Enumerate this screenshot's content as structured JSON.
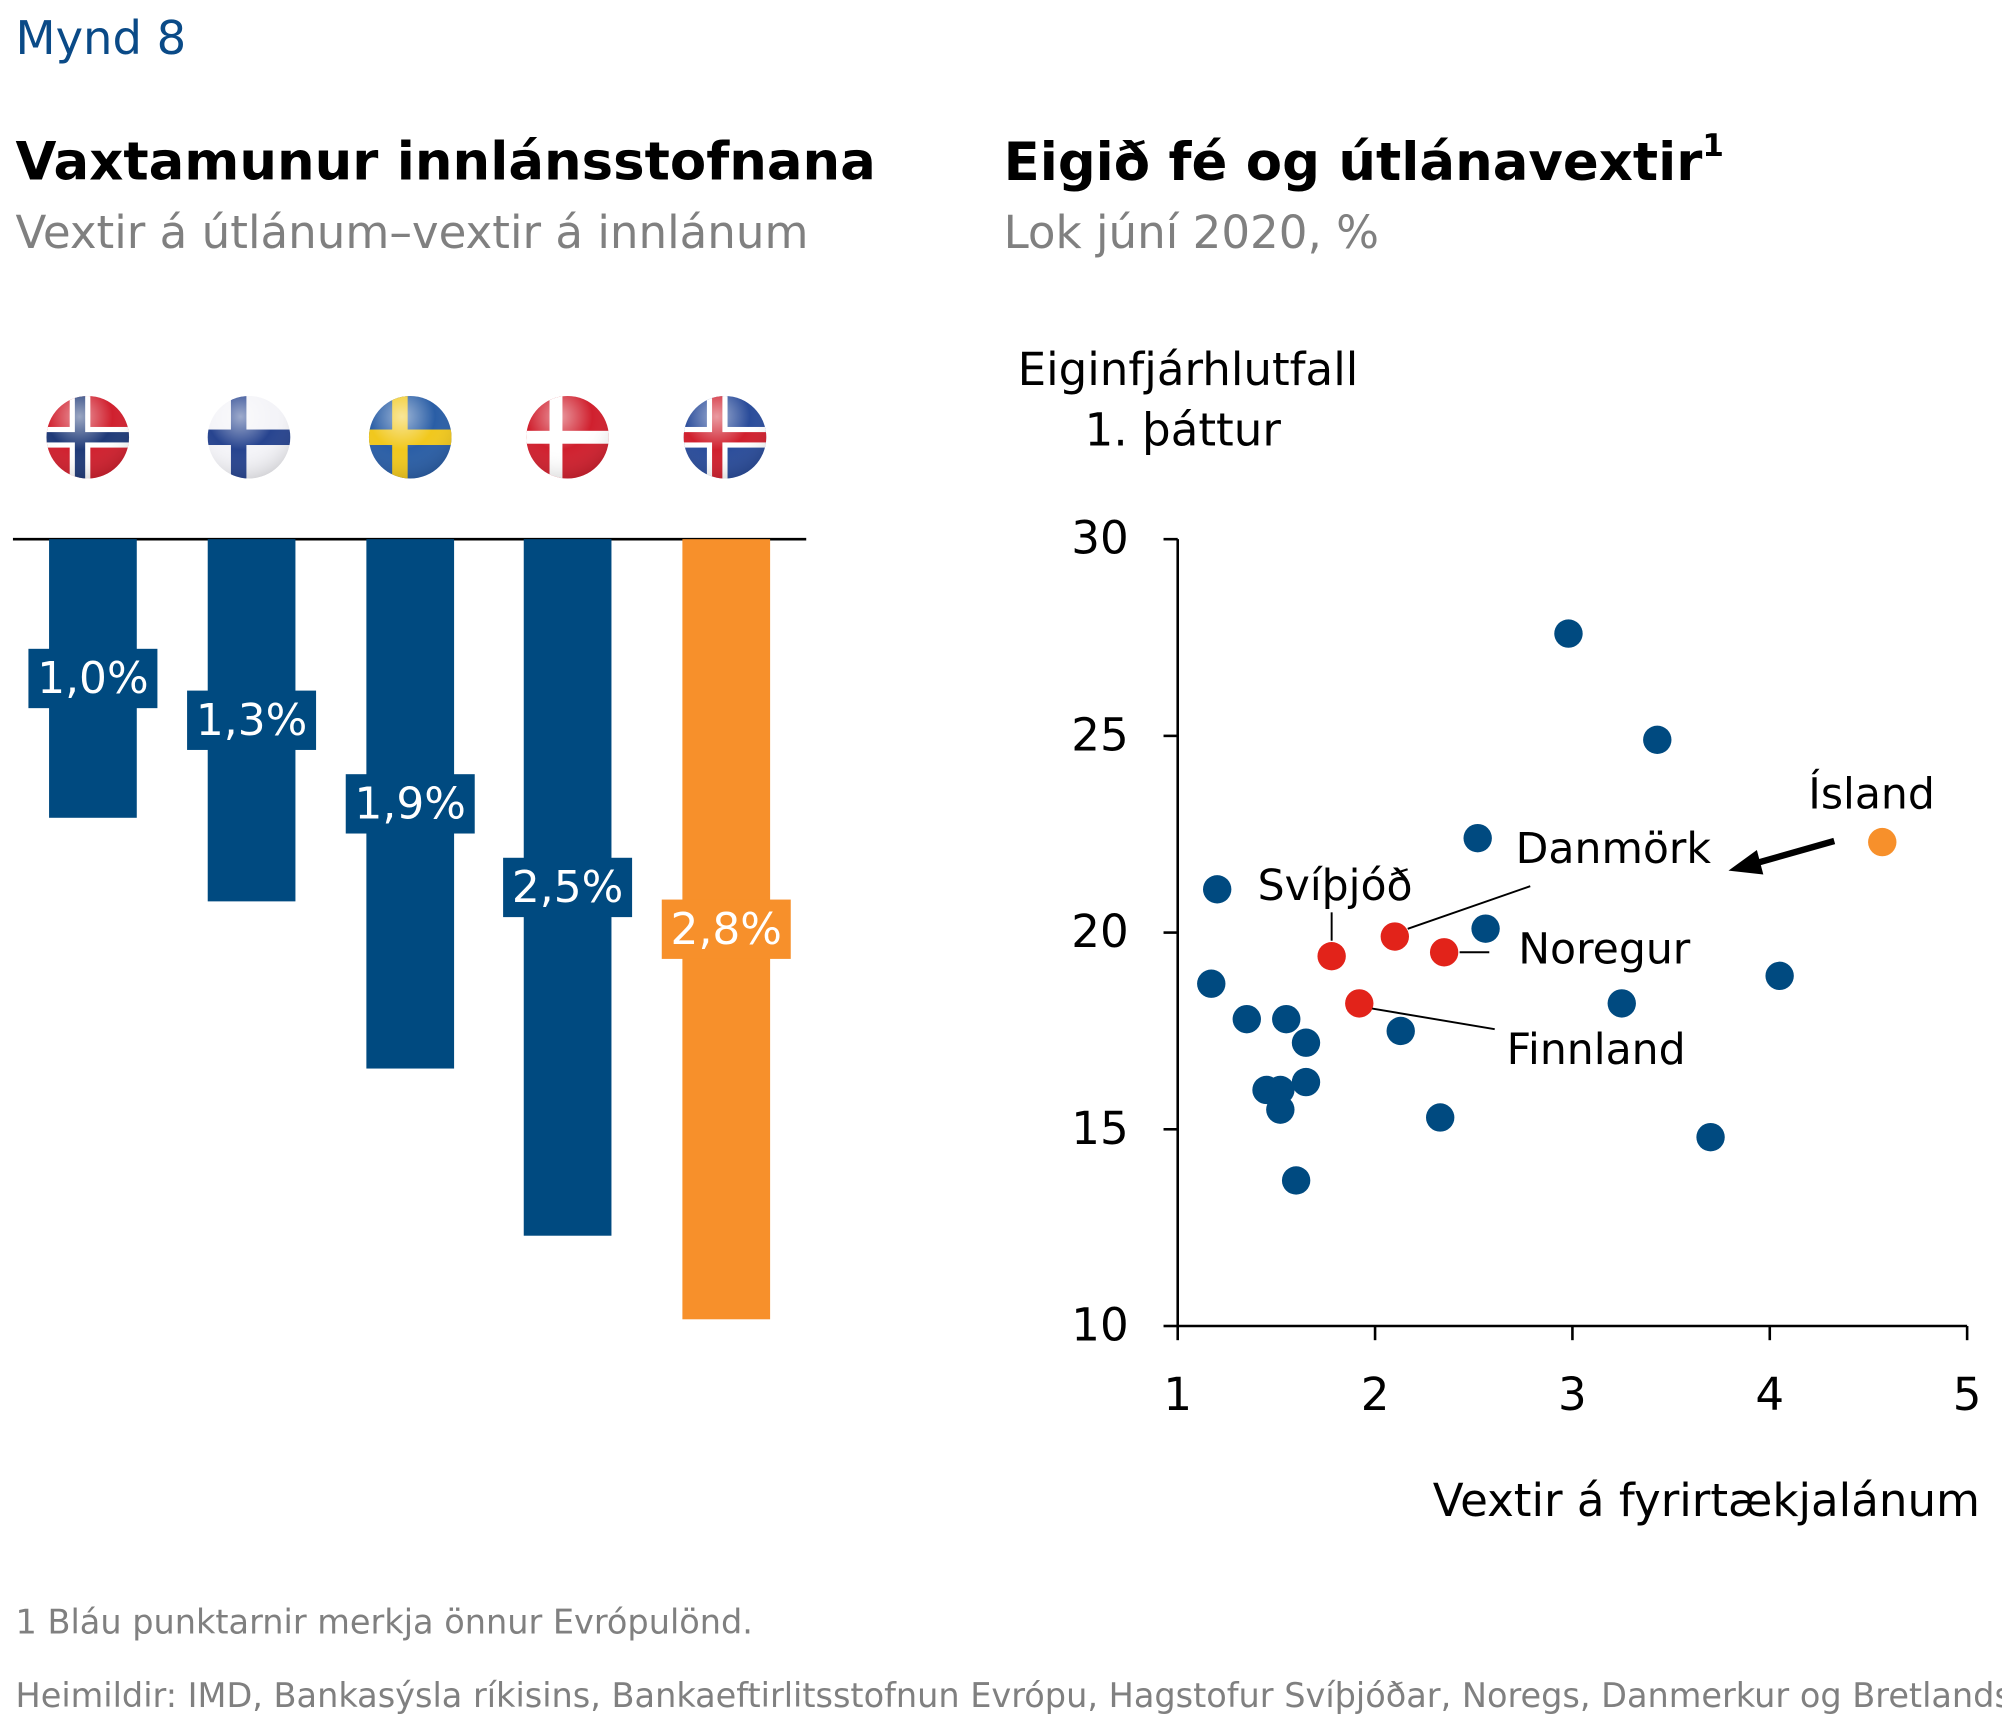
{
  "header": "Mynd 8",
  "chart_data": [
    {
      "type": "hanging-bar",
      "title": "Vaxtamunur innlánsstofnana",
      "subtitle": "Vextir á útlánum–vextir á innlánum",
      "values": [
        1.0,
        1.3,
        1.9,
        2.5,
        2.8
      ],
      "value_labels": [
        "1,0%",
        "1,3%",
        "1,9%",
        "2,5%",
        "2,8%"
      ],
      "colors": [
        "#004a80",
        "#004a80",
        "#004a80",
        "#004a80",
        "#f7902b"
      ]
    },
    {
      "type": "scatter",
      "title": "Eigið fé og útlánavextir",
      "title_note": "1",
      "subtitle": "Lok júní 2020, %",
      "ylabel": [
        "Eiginfjárhlutfall",
        "1. þáttur"
      ],
      "xlabel": "Vextir á fyrirtækjalánum",
      "xlim": [
        1,
        5
      ],
      "xticks": [
        1,
        2,
        3,
        4,
        5
      ],
      "ylim": [
        10,
        30
      ],
      "yticks": [
        10,
        15,
        20,
        25,
        30
      ],
      "series": [
        {
          "color": "#004a80",
          "x": [
            1.2,
            1.17,
            1.35,
            1.55,
            1.65,
            1.45,
            1.52,
            1.52,
            1.65,
            1.6,
            2.13,
            2.33,
            2.52,
            2.56,
            2.98,
            3.43,
            3.25,
            3.7,
            4.05
          ],
          "values": [
            21.1,
            18.7,
            17.8,
            17.8,
            17.2,
            16.0,
            16.0,
            15.5,
            16.2,
            13.7,
            17.5,
            15.3,
            22.4,
            20.1,
            27.6,
            24.9,
            18.2,
            14.8,
            18.9
          ]
        },
        {
          "color": "#e2231a",
          "labels": [
            "Svíþjóð",
            "Danmörk",
            "Noregur",
            "Finnland"
          ],
          "x": [
            1.78,
            2.1,
            2.35,
            1.92
          ],
          "values": [
            19.4,
            19.9,
            19.5,
            18.2
          ]
        },
        {
          "color": "#f7902b",
          "labels": [
            "Ísland"
          ],
          "x": [
            4.57
          ],
          "values": [
            22.3
          ]
        }
      ]
    }
  ],
  "footnotes": [
    "1 Bláu punktarnir merkja önnur Evrópulönd.",
    "Heimildir: IMD, Bankasýsla ríkisins, Bankaeftirlitsstofnun Evrópu, Hagstofur Svíþjóðar, Noregs, Danmerkur og Bretlands"
  ]
}
